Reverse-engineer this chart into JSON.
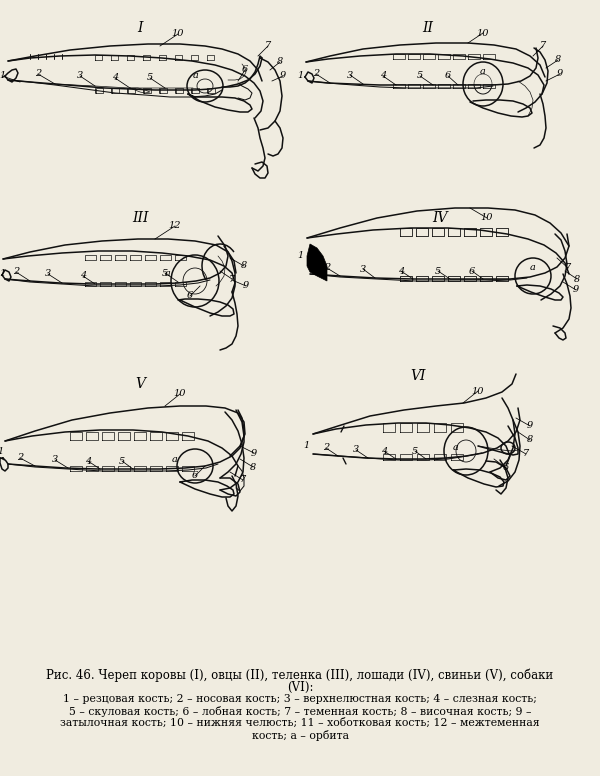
{
  "bg_color": "#f0ece0",
  "lc": "#111111",
  "figsize": [
    6.0,
    7.76
  ],
  "dpi": 100,
  "caption_title": "Рис. 46. Череп коровы (I), овцы (II), теленка (III), лошади (IV), свиньи (V), собаки",
  "caption_title2": "(VI):",
  "caption_l1": "1 – резцовая кость; 2 – носовая кость; 3 – верхнелюстная кость; 4 – слезная кость;",
  "caption_l2": "5 – скуловая кость; 6 – лобная кость; 7 – теменная кость; 8 – височная кость; 9 –",
  "caption_l3": "затылочная кость; 10 – нижняя челюсть; 11 – хоботковая кость; 12 – межтеменная",
  "caption_l4": "кость; a – орбита"
}
